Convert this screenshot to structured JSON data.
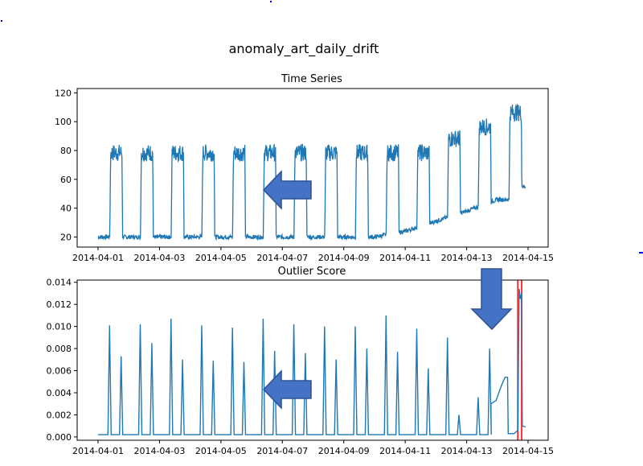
{
  "figure": {
    "title": "anomaly_art_daily_drift"
  },
  "colors": {
    "series": "#1f77b4",
    "anomaly": "#ff0000",
    "arrow_fill": "#4472c4",
    "arrow_stroke": "#2f528f",
    "marker": "#0000ff"
  },
  "date_ticks": [
    "2014-04-01",
    "2014-04-03",
    "2014-04-05",
    "2014-04-07",
    "2014-04-09",
    "2014-04-11",
    "2014-04-13",
    "2014-04-15"
  ],
  "chart_data": [
    {
      "type": "line",
      "title": "Time Series",
      "xlabel": "",
      "ylabel": "",
      "xlim": [
        "2014-04-01",
        "2014-04-15"
      ],
      "ylim": [
        13,
        123
      ],
      "yticks": [
        "20",
        "40",
        "60",
        "80",
        "100",
        "120"
      ],
      "grid": false,
      "series": [
        {
          "pattern": "daily square wave: low level during night, high level (with noisy band) during day; drift starts 2014-04-11",
          "days": [
            {
              "date": "2014-04-01",
              "low": 20,
              "high": 80
            },
            {
              "date": "2014-04-02",
              "low": 20,
              "high": 80
            },
            {
              "date": "2014-04-03",
              "low": 20,
              "high": 80
            },
            {
              "date": "2014-04-04",
              "low": 20,
              "high": 80
            },
            {
              "date": "2014-04-05",
              "low": 20,
              "high": 80
            },
            {
              "date": "2014-04-06",
              "low": 20,
              "high": 80
            },
            {
              "date": "2014-04-07",
              "low": 20,
              "high": 80
            },
            {
              "date": "2014-04-08",
              "low": 20,
              "high": 80
            },
            {
              "date": "2014-04-09",
              "low": 20,
              "high": 80
            },
            {
              "date": "2014-04-10",
              "low": 20,
              "high": 80
            },
            {
              "date": "2014-04-11",
              "low": 24,
              "high": 80
            },
            {
              "date": "2014-04-12",
              "low": 31,
              "high": 90
            },
            {
              "date": "2014-04-13",
              "low": 38,
              "high": 98
            },
            {
              "date": "2014-04-14",
              "low": 46,
              "high": 108
            }
          ],
          "end": {
            "date": "2014-04-14T22:00",
            "value": 55
          }
        }
      ],
      "annotations": [
        {
          "type": "arrow",
          "direction": "left",
          "position": "center"
        }
      ]
    },
    {
      "type": "line",
      "title": "Outlier Score",
      "xlabel": "",
      "ylabel": "",
      "xlim": [
        "2014-04-01",
        "2014-04-15"
      ],
      "ylim": [
        -0.0003,
        0.0142
      ],
      "yticks": [
        "0.000",
        "0.002",
        "0.004",
        "0.006",
        "0.008",
        "0.010",
        "0.012",
        "0.014"
      ],
      "grid": false,
      "baseline": 0.0002,
      "spikes": [
        {
          "t": "2014-04-01T09:00",
          "value": 0.0101
        },
        {
          "t": "2014-04-01T18:00",
          "value": 0.0073
        },
        {
          "t": "2014-04-02T09:00",
          "value": 0.0102
        },
        {
          "t": "2014-04-02T18:00",
          "value": 0.0085
        },
        {
          "t": "2014-04-03T09:00",
          "value": 0.0107
        },
        {
          "t": "2014-04-03T18:00",
          "value": 0.007
        },
        {
          "t": "2014-04-04T09:00",
          "value": 0.0101
        },
        {
          "t": "2014-04-04T18:00",
          "value": 0.0069
        },
        {
          "t": "2014-04-05T09:00",
          "value": 0.0099
        },
        {
          "t": "2014-04-05T18:00",
          "value": 0.0068
        },
        {
          "t": "2014-04-06T09:00",
          "value": 0.0107
        },
        {
          "t": "2014-04-06T18:00",
          "value": 0.0078
        },
        {
          "t": "2014-04-07T09:00",
          "value": 0.0102
        },
        {
          "t": "2014-04-07T18:00",
          "value": 0.0076
        },
        {
          "t": "2014-04-08T09:00",
          "value": 0.01
        },
        {
          "t": "2014-04-08T18:00",
          "value": 0.007
        },
        {
          "t": "2014-04-09T09:00",
          "value": 0.01
        },
        {
          "t": "2014-04-09T18:00",
          "value": 0.008
        },
        {
          "t": "2014-04-10T09:00",
          "value": 0.011
        },
        {
          "t": "2014-04-10T18:00",
          "value": 0.0077
        },
        {
          "t": "2014-04-11T09:00",
          "value": 0.0098
        },
        {
          "t": "2014-04-11T18:00",
          "value": 0.0062
        },
        {
          "t": "2014-04-12T09:00",
          "value": 0.009
        },
        {
          "t": "2014-04-12T18:00",
          "value": 0.002
        },
        {
          "t": "2014-04-13T09:00",
          "value": 0.0036
        },
        {
          "t": "2014-04-13T18:00",
          "value": 0.008
        }
      ],
      "tail": [
        {
          "t": "2014-04-13T19:00",
          "value": 0.003
        },
        {
          "t": "2014-04-13T23:00",
          "value": 0.0033
        },
        {
          "t": "2014-04-14T03:00",
          "value": 0.0046
        },
        {
          "t": "2014-04-14T06:00",
          "value": 0.0054
        },
        {
          "t": "2014-04-14T08:00",
          "value": 0.0054
        },
        {
          "t": "2014-04-14T08:30",
          "value": 0.0003
        },
        {
          "t": "2014-04-14T13:00",
          "value": 0.0003
        },
        {
          "t": "2014-04-14T16:00",
          "value": 0.0006
        },
        {
          "t": "2014-04-14T17:00",
          "value": 0.0134
        },
        {
          "t": "2014-04-14T18:00",
          "value": 0.0125
        },
        {
          "t": "2014-04-14T19:00",
          "value": 0.013
        },
        {
          "t": "2014-04-14T19:30",
          "value": 0.001
        },
        {
          "t": "2014-04-14T22:00",
          "value": 0.0009
        }
      ],
      "anomaly_span": {
        "start": "2014-04-14T16:00",
        "end": "2014-04-14T19:00"
      },
      "annotations": [
        {
          "type": "arrow",
          "direction": "left",
          "position": "lower-center"
        },
        {
          "type": "arrow",
          "direction": "down",
          "position": "upper-right"
        }
      ]
    }
  ]
}
